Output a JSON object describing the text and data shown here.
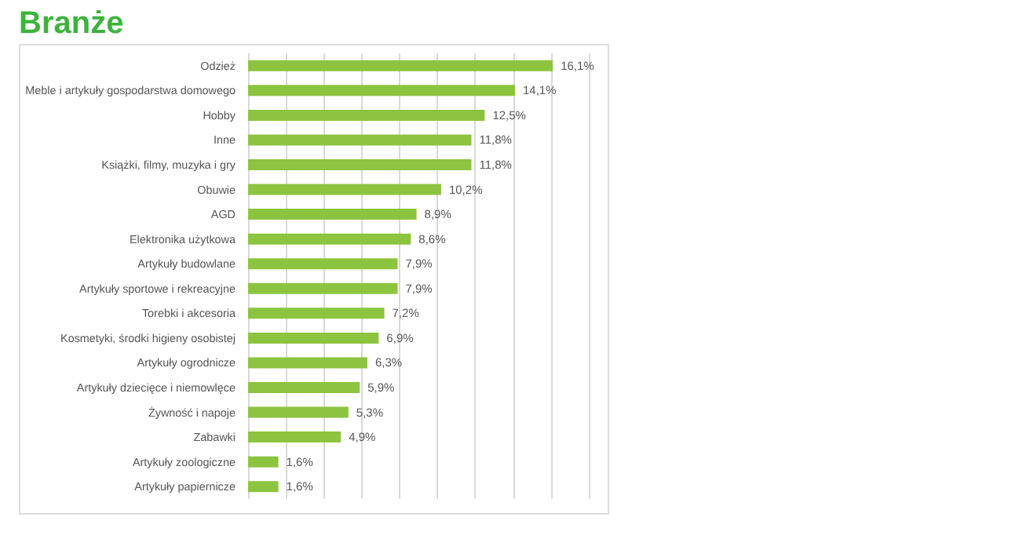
{
  "chart_data": {
    "type": "bar",
    "orientation": "horizontal",
    "title": "Branże",
    "categories": [
      "Odzież",
      "Meble i artykuły gospodarstwa domowego",
      "Hobby",
      "Inne",
      "Książki, filmy, muzyka i gry",
      "Obuwie",
      "AGD",
      "Elektronika użytkowa",
      "Artykuły budowlane",
      "Artykuły sportowe i rekreacyjne",
      "Torebki i akcesoria",
      "Kosmetyki, środki higieny osobistej",
      "Artykuły ogrodnicze",
      "Artykuły dziecięce i niemowlęce",
      "Żywność i napoje",
      "Zabawki",
      "Artykuły zoologiczne",
      "Artykuły papiernicze"
    ],
    "values": [
      16.1,
      14.1,
      12.5,
      11.8,
      11.8,
      10.2,
      8.9,
      8.6,
      7.9,
      7.9,
      7.2,
      6.9,
      6.3,
      5.9,
      5.3,
      4.9,
      1.6,
      1.6
    ],
    "value_labels": [
      "16,1%",
      "14,1%",
      "12,5%",
      "11,8%",
      "11,8%",
      "10,2%",
      "8,9%",
      "8,6%",
      "7,9%",
      "7,9%",
      "7,2%",
      "6,9%",
      "6,3%",
      "5,9%",
      "5,3%",
      "4,9%",
      "1,6%",
      "1,6%"
    ],
    "color": "#8cc43f",
    "xlim": [
      0,
      18
    ],
    "xticks": [
      {
        "value": 0,
        "label": null
      },
      {
        "value": 2,
        "label": null
      },
      {
        "value": 4,
        "label": null
      },
      {
        "value": 6,
        "label": null
      },
      {
        "value": 8,
        "label": null
      },
      {
        "value": 10,
        "label": null
      },
      {
        "value": 12,
        "label": null
      },
      {
        "value": 14,
        "label": null
      },
      {
        "value": 16,
        "label": null
      },
      {
        "value": 18,
        "label": null
      }
    ],
    "tick_labels": "y",
    "grid": "x"
  }
}
